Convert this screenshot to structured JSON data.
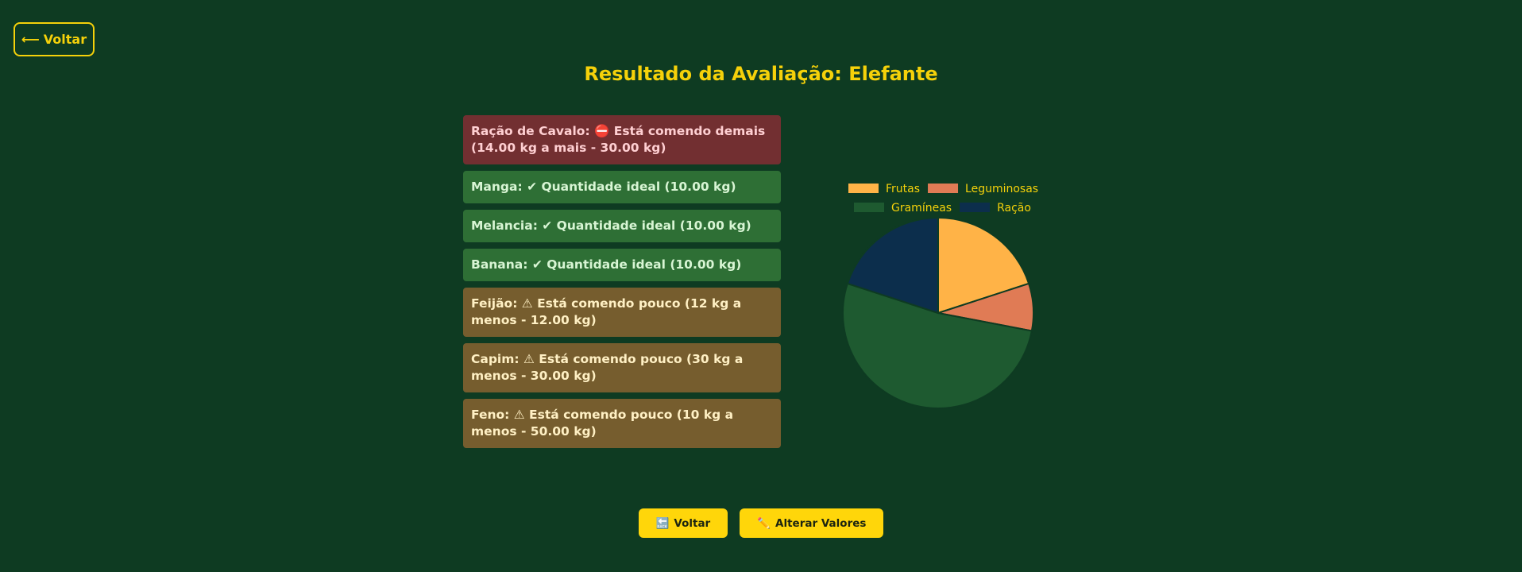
{
  "header": {
    "back_label": "Voltar",
    "back_arrow": "⟵"
  },
  "page": {
    "title": "Resultado da Avaliação: Elefante"
  },
  "results": [
    {
      "status": "danger",
      "text": "Ração de Cavalo: ⛔ Está comendo demais (14.00 kg a mais - 30.00 kg)"
    },
    {
      "status": "ok",
      "text": "Manga: ✔ Quantidade ideal (10.00 kg)"
    },
    {
      "status": "ok",
      "text": "Melancia: ✔ Quantidade ideal (10.00 kg)"
    },
    {
      "status": "ok",
      "text": "Banana: ✔ Quantidade ideal (10.00 kg)"
    },
    {
      "status": "warn",
      "text": "Feijão: ⚠ Está comendo pouco (12 kg a menos - 12.00 kg)"
    },
    {
      "status": "warn",
      "text": "Capim: ⚠ Está comendo pouco (30 kg a menos - 30.00 kg)"
    },
    {
      "status": "warn",
      "text": "Feno: ⚠ Está comendo pouco (10 kg a menos - 50.00 kg)"
    }
  ],
  "chart_data": {
    "type": "pie",
    "categories": [
      "Frutas",
      "Leguminosas",
      "Gramíneas",
      "Ração"
    ],
    "values": [
      20,
      8,
      52,
      20
    ],
    "colors": [
      "#ffb347",
      "#e07b55",
      "#1e5a30",
      "#0c2e4c"
    ],
    "legend_position": "top"
  },
  "actions": {
    "back_label": "Voltar",
    "back_icon": "🔙",
    "edit_label": "Alterar Valores",
    "edit_icon": "✏️"
  }
}
